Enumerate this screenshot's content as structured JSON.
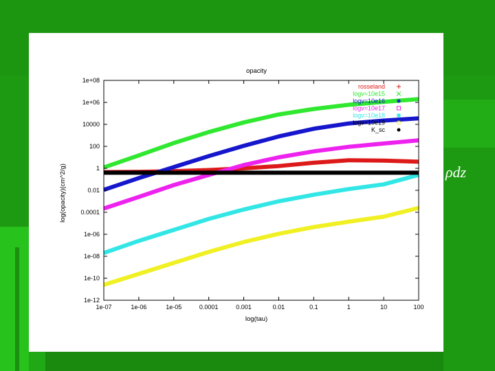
{
  "slide": {
    "text_fragment": "ρdz",
    "colors": {
      "background": "#1d9a12",
      "panel": "#ffffff"
    }
  },
  "chart_data": {
    "type": "line",
    "title": "opacity",
    "xlabel": "log(tau)",
    "ylabel": "log(opacity)(cm^2/g)",
    "x_scale": "log",
    "y_scale": "log",
    "xlim": [
      1e-07,
      100
    ],
    "ylim": [
      1e-12,
      100000000.0
    ],
    "grid": false,
    "legend_position": "top-right",
    "x_ticks": [
      {
        "value": 1e-07,
        "label": "1e-07"
      },
      {
        "value": 1e-06,
        "label": "1e-06"
      },
      {
        "value": 1e-05,
        "label": "1e-05"
      },
      {
        "value": 0.0001,
        "label": "0.0001"
      },
      {
        "value": 0.001,
        "label": "0.001"
      },
      {
        "value": 0.01,
        "label": "0.01"
      },
      {
        "value": 0.1,
        "label": "0.1"
      },
      {
        "value": 1,
        "label": "1"
      },
      {
        "value": 10,
        "label": "10"
      },
      {
        "value": 100,
        "label": "100"
      }
    ],
    "y_ticks": [
      {
        "value": 1e-12,
        "label": "1e-12"
      },
      {
        "value": 1e-10,
        "label": "1e-10"
      },
      {
        "value": 1e-08,
        "label": "1e-08"
      },
      {
        "value": 1e-06,
        "label": "1e-06"
      },
      {
        "value": 0.0001,
        "label": "0.0001"
      },
      {
        "value": 0.01,
        "label": "0.01"
      },
      {
        "value": 1,
        "label": "1"
      },
      {
        "value": 100,
        "label": "100"
      },
      {
        "value": 10000.0,
        "label": "10000"
      },
      {
        "value": 1000000.0,
        "label": "1e+06"
      },
      {
        "value": 100000000.0,
        "label": "1e+08"
      }
    ],
    "series": [
      {
        "name": "rosseland",
        "color": "#dd1a1a",
        "marker": "+",
        "x": [
          1e-07,
          1e-06,
          1e-05,
          0.0001,
          0.001,
          0.01,
          0.1,
          1,
          10,
          100
        ],
        "y": [
          0.45,
          0.48,
          0.55,
          0.7,
          1.0,
          1.6,
          3.2,
          5.5,
          5.0,
          4.0
        ]
      },
      {
        "name": "logv=10e15",
        "color": "#2fe82f",
        "marker": "x",
        "x": [
          1e-07,
          1e-06,
          1e-05,
          0.0001,
          0.001,
          0.01,
          0.1,
          1,
          10,
          100
        ],
        "y": [
          1.2,
          15,
          200,
          2000,
          15000,
          80000,
          250000,
          600000,
          1100000,
          2000000
        ]
      },
      {
        "name": "logv=10e16",
        "color": "#1616cc",
        "marker": "*",
        "x": [
          1e-07,
          1e-06,
          1e-05,
          0.0001,
          0.001,
          0.01,
          0.1,
          1,
          10,
          100
        ],
        "y": [
          0.011,
          0.13,
          1.3,
          13,
          110,
          800,
          4000,
          12000,
          22000,
          35000
        ]
      },
      {
        "name": "logv=10e17",
        "color": "#ee22ee",
        "marker": "square",
        "x": [
          1e-07,
          1e-06,
          1e-05,
          0.0001,
          0.001,
          0.01,
          0.1,
          1,
          10,
          100
        ],
        "y": [
          0.00022,
          0.0025,
          0.03,
          0.25,
          2.0,
          10,
          35,
          90,
          180,
          350
        ]
      },
      {
        "name": "logv=10e18",
        "color": "#33e6e6",
        "marker": "filled-square",
        "x": [
          1e-07,
          1e-06,
          1e-05,
          0.0001,
          0.001,
          0.01,
          0.1,
          1,
          10,
          100
        ],
        "y": [
          2e-08,
          2.5e-07,
          2.5e-06,
          2.5e-05,
          0.00018,
          0.001,
          0.004,
          0.013,
          0.035,
          0.25
        ]
      },
      {
        "name": "logv=10e19",
        "color": "#f0f024",
        "marker": "circle",
        "x": [
          1e-07,
          1e-06,
          1e-05,
          0.0001,
          0.001,
          0.01,
          0.1,
          1,
          10,
          100
        ],
        "y": [
          2.5e-11,
          2.5e-10,
          2.5e-09,
          2.5e-08,
          2e-07,
          1.1e-06,
          4.5e-06,
          1.4e-05,
          4e-05,
          0.00025
        ]
      },
      {
        "name": "K_sc",
        "color": "#000000",
        "marker": "filled-circle",
        "x": [
          1e-07,
          100
        ],
        "y": [
          0.4,
          0.4
        ]
      }
    ]
  }
}
